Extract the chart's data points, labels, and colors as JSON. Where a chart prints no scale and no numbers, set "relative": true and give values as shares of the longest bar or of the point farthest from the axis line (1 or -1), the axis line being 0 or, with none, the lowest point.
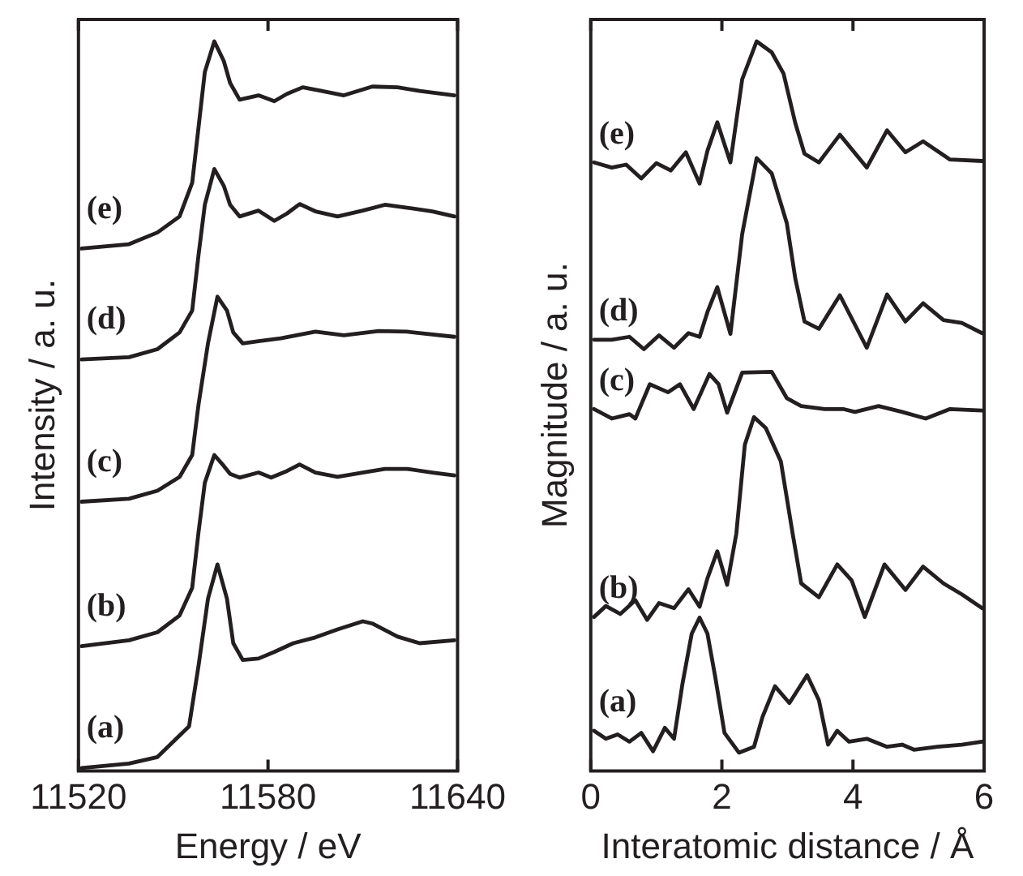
{
  "chart_data": [
    {
      "type": "line",
      "relative": true,
      "xlabel": "Energy / eV",
      "ylabel": "Intensity / a. u.",
      "xlim": [
        11520,
        11640
      ],
      "xticks": [
        11520,
        11580,
        11640
      ],
      "grid": false,
      "legend": false,
      "marker": "none",
      "line_style": "solid",
      "series": [
        {
          "name": "(a)",
          "color": "#231f20",
          "x": [
            11521,
            11536,
            11545,
            11555,
            11558,
            11561,
            11564,
            11567,
            11569,
            11572,
            11577,
            11582,
            11588,
            11595,
            11602,
            11610,
            11613,
            11621,
            11628,
            11639
          ],
          "values": [
            0.004,
            0.01,
            0.019,
            0.061,
            0.144,
            0.236,
            0.283,
            0.236,
            0.175,
            0.152,
            0.154,
            0.163,
            0.175,
            0.183,
            0.194,
            0.205,
            0.202,
            0.184,
            0.175,
            0.179
          ]
        },
        {
          "name": "(b)",
          "color": "#231f20",
          "x": [
            11521,
            11536,
            11545,
            11552,
            11556,
            11558,
            11560,
            11563,
            11566,
            11568,
            11571,
            11577,
            11581,
            11586,
            11590,
            11595,
            11602,
            11610,
            11617,
            11624,
            11632,
            11639
          ],
          "values": [
            0.171,
            0.179,
            0.19,
            0.213,
            0.251,
            0.327,
            0.395,
            0.433,
            0.418,
            0.407,
            0.402,
            0.409,
            0.402,
            0.411,
            0.42,
            0.409,
            0.403,
            0.409,
            0.414,
            0.414,
            0.409,
            0.405
          ]
        },
        {
          "name": "(c)",
          "color": "#231f20",
          "x": [
            11521,
            11536,
            11545,
            11552,
            11556,
            11558,
            11561,
            11564,
            11567,
            11569,
            11572,
            11577,
            11584,
            11595,
            11604,
            11615,
            11624,
            11639
          ],
          "values": [
            0.369,
            0.373,
            0.384,
            0.403,
            0.433,
            0.502,
            0.586,
            0.65,
            0.631,
            0.601,
            0.586,
            0.589,
            0.593,
            0.602,
            0.597,
            0.603,
            0.602,
            0.595
          ]
        },
        {
          "name": "(d)",
          "color": "#231f20",
          "x": [
            11521,
            11536,
            11545,
            11552,
            11556,
            11558,
            11560,
            11563,
            11566,
            11568,
            11571,
            11577,
            11582,
            11586,
            11590,
            11595,
            11602,
            11610,
            11617,
            11624,
            11632,
            11639
          ],
          "values": [
            0.564,
            0.567,
            0.578,
            0.601,
            0.631,
            0.707,
            0.776,
            0.825,
            0.802,
            0.776,
            0.76,
            0.768,
            0.754,
            0.764,
            0.777,
            0.767,
            0.76,
            0.768,
            0.776,
            0.772,
            0.767,
            0.76
          ]
        },
        {
          "name": "(e)",
          "color": "#231f20",
          "x": [
            11521,
            11536,
            11545,
            11552,
            11556,
            11558,
            11560,
            11563,
            11566,
            11568,
            11571,
            11577,
            11582,
            11586,
            11591,
            11597,
            11604,
            11613,
            11621,
            11628,
            11639
          ],
          "values": [
            0.716,
            0.722,
            0.738,
            0.76,
            0.806,
            0.882,
            0.958,
            1,
            0.973,
            0.943,
            0.92,
            0.926,
            0.918,
            0.928,
            0.937,
            0.932,
            0.926,
            0.938,
            0.937,
            0.932,
            0.926
          ]
        }
      ]
    },
    {
      "type": "line",
      "relative": true,
      "xlabel": "Interatomic distance / Å",
      "ylabel": "Magnitude / a. u.",
      "xlim": [
        0,
        6
      ],
      "xticks": [
        0,
        2,
        4,
        6
      ],
      "grid": false,
      "legend": false,
      "marker": "none",
      "line_style": "solid",
      "series": [
        {
          "name": "(a)",
          "color": "#231f20",
          "x": [
            0.05,
            0.23,
            0.41,
            0.59,
            0.77,
            0.95,
            1.13,
            1.27,
            1.4,
            1.54,
            1.66,
            1.78,
            1.9,
            2.04,
            2.26,
            2.49,
            2.62,
            2.81,
            3.03,
            3.3,
            3.48,
            3.62,
            3.76,
            3.94,
            4.21,
            4.52,
            4.75,
            4.93,
            5.29,
            5.66,
            5.97
          ],
          "values": [
            0.055,
            0.044,
            0.05,
            0.04,
            0.052,
            0.027,
            0.059,
            0.044,
            0.12,
            0.188,
            0.21,
            0.188,
            0.128,
            0.052,
            0.025,
            0.033,
            0.074,
            0.116,
            0.093,
            0.131,
            0.097,
            0.036,
            0.055,
            0.04,
            0.044,
            0.033,
            0.036,
            0.029,
            0.033,
            0.036,
            0.04
          ]
        },
        {
          "name": "(b)",
          "color": "#231f20",
          "x": [
            0.05,
            0.23,
            0.45,
            0.68,
            0.86,
            1.04,
            1.27,
            1.49,
            1.66,
            1.78,
            1.93,
            2.08,
            2.22,
            2.35,
            2.49,
            2.67,
            2.9,
            3.08,
            3.21,
            3.48,
            3.76,
            3.98,
            4.18,
            4.48,
            4.8,
            5.07,
            5.38,
            5.66,
            5.97
          ],
          "values": [
            0.211,
            0.226,
            0.215,
            0.234,
            0.207,
            0.23,
            0.223,
            0.249,
            0.225,
            0.264,
            0.301,
            0.255,
            0.325,
            0.447,
            0.485,
            0.47,
            0.424,
            0.325,
            0.257,
            0.238,
            0.283,
            0.261,
            0.211,
            0.283,
            0.248,
            0.28,
            0.257,
            0.242,
            0.223
          ]
        },
        {
          "name": "(c)",
          "color": "#231f20",
          "x": [
            0.05,
            0.32,
            0.59,
            0.68,
            0.9,
            1.18,
            1.36,
            1.57,
            1.81,
            1.95,
            2.08,
            2.31,
            2.76,
            2.99,
            3.21,
            3.57,
            3.85,
            4.03,
            4.39,
            4.75,
            5.11,
            5.48,
            5.97
          ],
          "values": [
            0.496,
            0.483,
            0.489,
            0.483,
            0.53,
            0.519,
            0.53,
            0.496,
            0.544,
            0.53,
            0.491,
            0.546,
            0.547,
            0.511,
            0.5,
            0.496,
            0.496,
            0.492,
            0.5,
            0.492,
            0.483,
            0.496,
            0.494
          ]
        },
        {
          "name": "(d)",
          "color": "#231f20",
          "x": [
            0.05,
            0.32,
            0.59,
            0.81,
            1.04,
            1.27,
            1.49,
            1.66,
            1.78,
            1.93,
            2.13,
            2.31,
            2.53,
            2.76,
            2.99,
            3.12,
            3.26,
            3.48,
            3.8,
            4.21,
            4.52,
            4.8,
            5.07,
            5.38,
            5.66,
            5.97
          ],
          "values": [
            0.591,
            0.591,
            0.595,
            0.578,
            0.597,
            0.58,
            0.6,
            0.595,
            0.629,
            0.663,
            0.599,
            0.736,
            0.84,
            0.819,
            0.751,
            0.675,
            0.616,
            0.606,
            0.652,
            0.58,
            0.653,
            0.616,
            0.641,
            0.618,
            0.614,
            0.6
          ]
        },
        {
          "name": "(e)",
          "color": "#231f20",
          "x": [
            0.05,
            0.32,
            0.54,
            0.77,
            1.0,
            1.22,
            1.45,
            1.66,
            1.78,
            1.93,
            2.13,
            2.31,
            2.53,
            2.76,
            2.94,
            3.12,
            3.26,
            3.48,
            3.8,
            4.21,
            4.52,
            4.8,
            5.07,
            5.48,
            5.97
          ],
          "values": [
            0.834,
            0.827,
            0.831,
            0.812,
            0.833,
            0.823,
            0.848,
            0.805,
            0.85,
            0.889,
            0.834,
            0.948,
            1,
            0.985,
            0.956,
            0.888,
            0.846,
            0.834,
            0.872,
            0.827,
            0.878,
            0.848,
            0.863,
            0.838,
            0.836
          ]
        }
      ]
    }
  ]
}
